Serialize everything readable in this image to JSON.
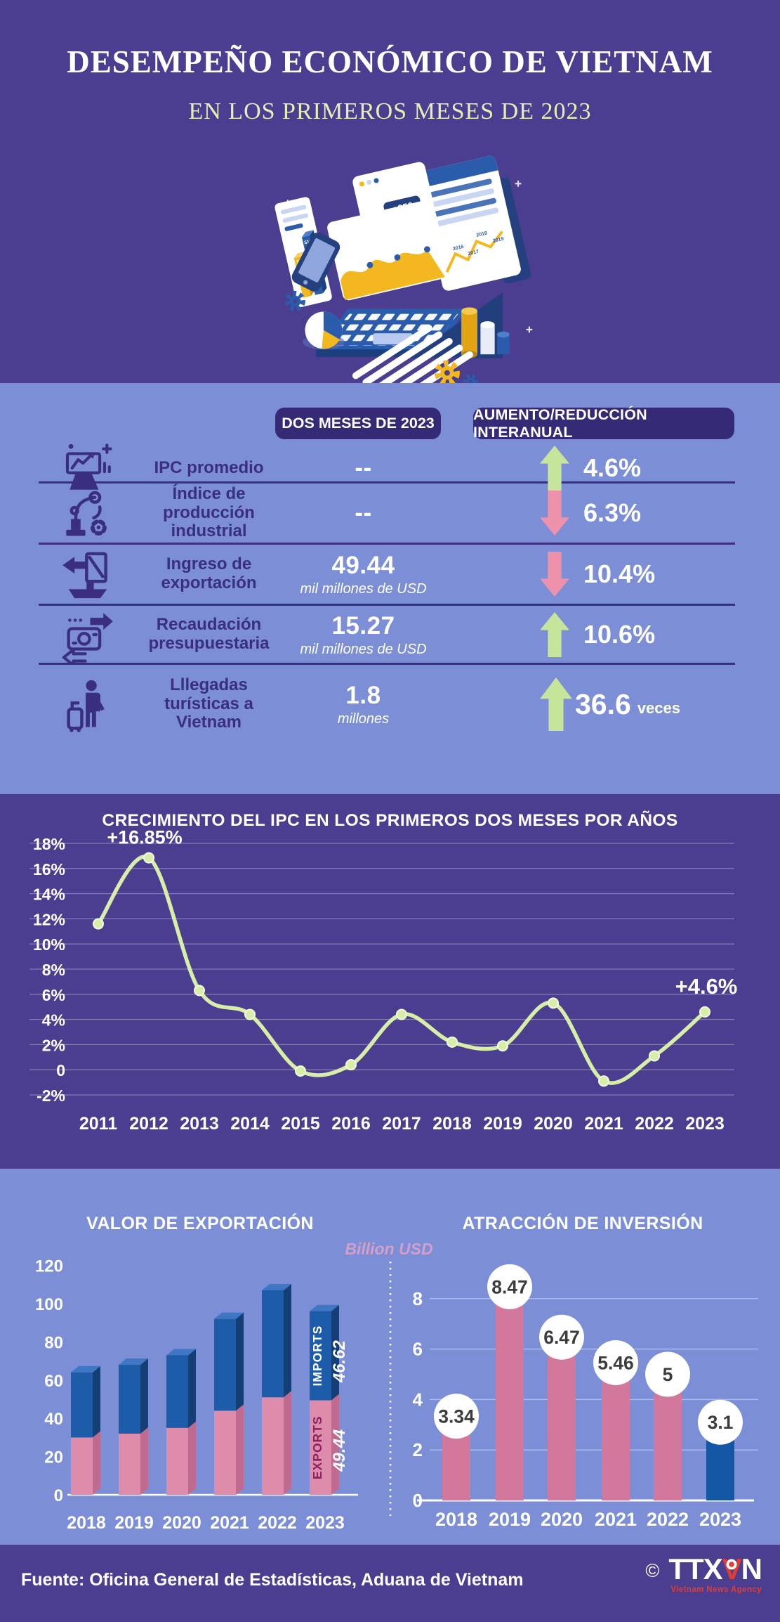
{
  "header": {
    "title": "DESEMPEÑO ECONÓMICO DE VIETNAM",
    "subtitle": "EN LOS PRIMEROS MESES DE 2023",
    "badge": "+256",
    "illustration_micro_bars": [
      "54%",
      "51%",
      "74%"
    ],
    "illustration_micro_years": [
      "2016",
      "2017",
      "2018",
      "2019"
    ]
  },
  "summary_table": {
    "col1_header": "DOS MESES DE 2023",
    "col2_header": "AUMENTO/REDUCCIÓN INTERANUAL",
    "rows": [
      {
        "icon": "ipc-board-icon",
        "label": "IPC promedio",
        "value": "--",
        "unit": "",
        "direction": "up",
        "change": "4.6%",
        "suffix": ""
      },
      {
        "icon": "robot-arm-icon",
        "label": "Índice de producción industrial",
        "value": "--",
        "unit": "",
        "direction": "down",
        "change": "6.3%",
        "suffix": ""
      },
      {
        "icon": "export-ship-icon",
        "label": "Ingreso de exportación",
        "value": "49.44",
        "unit": "mil millones de USD",
        "direction": "down",
        "change": "10.4%",
        "suffix": ""
      },
      {
        "icon": "budget-money-icon",
        "label": "Recaudación presupuestaria",
        "value": "15.27",
        "unit": "mil millones de USD",
        "direction": "up",
        "change": "10.6%",
        "suffix": ""
      },
      {
        "icon": "tourist-luggage-icon",
        "label": "Lllegadas turísticas a Vietnam",
        "value": "1.8",
        "unit": "millones",
        "direction": "up",
        "change": "36.6",
        "suffix": "veces"
      }
    ]
  },
  "chart_data": [
    {
      "id": "ipc_growth",
      "type": "line",
      "title": "CRECIMIENTO DEL IPC EN LOS PRIMEROS DOS MESES POR AÑOS",
      "x": [
        "2011",
        "2012",
        "2013",
        "2014",
        "2015",
        "2016",
        "2017",
        "2018",
        "2019",
        "2020",
        "2021",
        "2022",
        "2023"
      ],
      "values": [
        11.6,
        16.85,
        6.3,
        4.4,
        -0.1,
        0.4,
        4.4,
        2.2,
        1.9,
        5.3,
        -0.9,
        1.1,
        4.6
      ],
      "yticks": [
        "18%",
        "16%",
        "14%",
        "12%",
        "10%",
        "8%",
        "6%",
        "4%",
        "2%",
        "0",
        "-2%"
      ],
      "ytick_values": [
        18,
        16,
        14,
        12,
        10,
        8,
        6,
        4,
        2,
        0,
        -2
      ],
      "ylim": [
        -2,
        18
      ],
      "grid": true,
      "legend": "none",
      "line_color": "#d7eea8",
      "annotations": [
        {
          "x": "2012",
          "text": "+16.85%"
        },
        {
          "x": "2023",
          "text": "+4.6%"
        }
      ]
    },
    {
      "id": "export_value",
      "type": "stacked-bar-3d",
      "title": "VALOR DE EXPORTACIÓN",
      "categories": [
        "2018",
        "2019",
        "2020",
        "2021",
        "2022",
        "2023"
      ],
      "series": [
        {
          "name": "EXPORTS",
          "values": [
            30,
            32,
            35,
            44,
            51,
            49.44
          ],
          "color": "#de8cab"
        },
        {
          "name": "IMPORTS",
          "values": [
            34,
            36,
            38,
            48,
            56,
            46.62
          ],
          "color": "#1d5ca9"
        }
      ],
      "yticks": [
        0,
        20,
        40,
        60,
        80,
        100,
        120
      ],
      "ylim": [
        0,
        120
      ],
      "grid": false,
      "labels_2023": {
        "imports_name": "IMPORTS",
        "imports_value": "46.62",
        "exports_name": "EXPORTS",
        "exports_value": "49.44"
      }
    },
    {
      "id": "investment_attraction",
      "type": "bar",
      "title": "ATRACCIÓN DE INVERSIÓN",
      "unit_label": "Billion USD",
      "categories": [
        "2018",
        "2019",
        "2020",
        "2021",
        "2022",
        "2023"
      ],
      "values": [
        3.34,
        8.47,
        6.47,
        5.46,
        5,
        3.1
      ],
      "value_labels": [
        "3.34",
        "8.47",
        "6.47",
        "5.46",
        "5",
        "3.1"
      ],
      "bar_colors": [
        "#d3789d",
        "#d3789d",
        "#d3789d",
        "#d3789d",
        "#d3789d",
        "#1356a3"
      ],
      "yticks": [
        0,
        2,
        4,
        6,
        8
      ],
      "ylim": [
        0,
        8.8
      ],
      "grid": true
    }
  ],
  "footer": {
    "source": "Fuente: Oficina General de Estadísticas, Aduana de Vietnam",
    "copyright": "©",
    "logo_t1": "TTX",
    "logo_t2": "V",
    "logo_t3": "N",
    "logo_sub": "Vietnam News Agency"
  },
  "colors": {
    "bg_dark": "#4b3d8f",
    "bg_light": "#7b8ed6",
    "pill": "#342a76",
    "indigo_text": "#3a2f7e",
    "arrow_up_green": "#c6e49a",
    "arrow_down_pink": "#ee91ab",
    "line_green": "#d7eea8",
    "export_pink": "#de8cab",
    "import_blue": "#1d5ca9",
    "invest_pink": "#d3789d",
    "invest_blue": "#1356a3",
    "subtitle_green": "#e3efb4",
    "unit_mauve": "#d2a0ca",
    "logo_red": "#e23c32"
  }
}
